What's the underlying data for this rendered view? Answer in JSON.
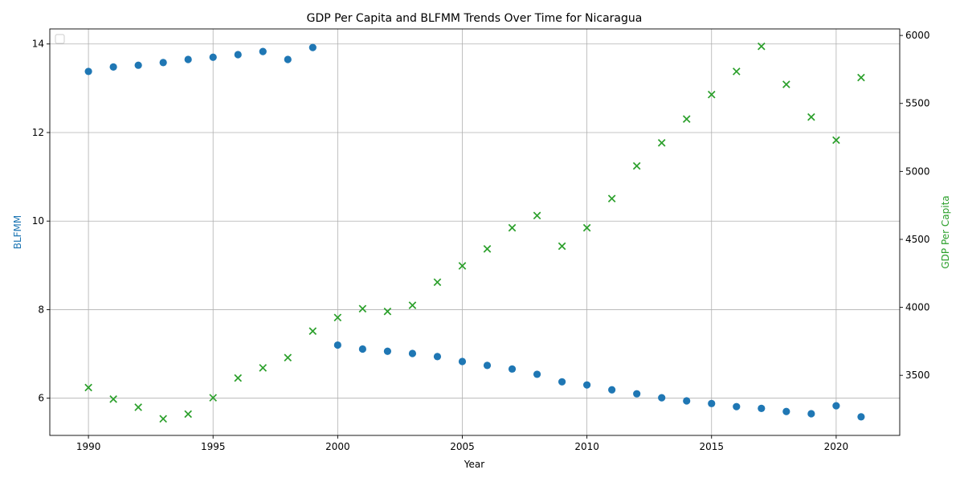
{
  "chart_data": {
    "type": "scatter",
    "title": "GDP Per Capita and BLFMM Trends Over Time for Nicaragua",
    "xlabel": "Year",
    "ylabel_left": "BLFMM",
    "ylabel_right": "GDP Per Capita",
    "xlim": [
      1988.45,
      2022.55
    ],
    "ylim_left": [
      5.16,
      14.34
    ],
    "ylim_right": [
      3058,
      6048
    ],
    "x_ticks": [
      1990,
      1995,
      2000,
      2005,
      2010,
      2015,
      2020
    ],
    "y_ticks_left": [
      6,
      8,
      10,
      12,
      14
    ],
    "y_ticks_right": [
      3500,
      4000,
      4500,
      5000,
      5500,
      6000
    ],
    "grid": true,
    "legend": "top-left (empty)",
    "series": [
      {
        "name": "",
        "axis": "left",
        "marker": "circle",
        "color": "#1f77b4",
        "x": [
          1990,
          1991,
          1992,
          1993,
          1994,
          1995,
          1996,
          1997,
          1998,
          1999,
          2000,
          2001,
          2002,
          2003,
          2004,
          2005,
          2006,
          2007,
          2008,
          2009,
          2010,
          2011,
          2012,
          2013,
          2014,
          2015,
          2016,
          2017,
          2018,
          2019,
          2020,
          2021
        ],
        "y": [
          13.38,
          13.48,
          13.52,
          13.58,
          13.65,
          13.7,
          13.76,
          13.83,
          13.65,
          13.92,
          7.2,
          7.11,
          7.06,
          7.01,
          6.94,
          6.83,
          6.74,
          6.66,
          6.54,
          6.37,
          6.3,
          6.19,
          6.1,
          6.01,
          5.94,
          5.88,
          5.81,
          5.77,
          5.7,
          5.65,
          5.83,
          5.58
        ]
      },
      {
        "name": "",
        "axis": "right",
        "marker": "x",
        "color": "#2ca02c",
        "x": [
          1990,
          1991,
          1992,
          1993,
          1994,
          1995,
          1996,
          1997,
          1998,
          1999,
          2000,
          2001,
          2002,
          2003,
          2004,
          2005,
          2006,
          2007,
          2008,
          2009,
          2010,
          2011,
          2012,
          2013,
          2014,
          2015,
          2016,
          2017,
          2018,
          2019,
          2020,
          2021
        ],
        "y": [
          3410,
          3325,
          3265,
          3180,
          3215,
          3335,
          3480,
          3555,
          3630,
          3825,
          3925,
          3990,
          3970,
          4015,
          4185,
          4305,
          4430,
          4585,
          4675,
          4450,
          4585,
          4800,
          5040,
          5210,
          5385,
          5565,
          5735,
          5920,
          5640,
          5400,
          5230,
          5690
        ]
      }
    ]
  }
}
